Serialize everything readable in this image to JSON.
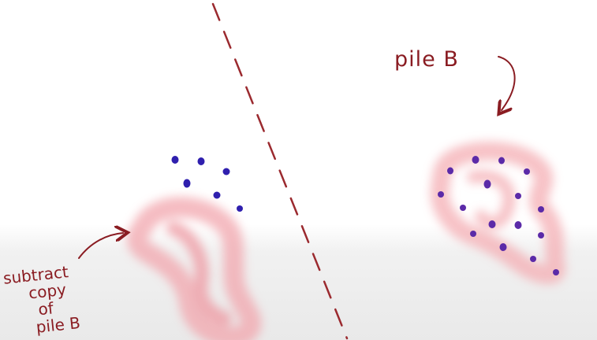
{
  "labels": {
    "pile_b": "pile B",
    "subtract_lines": [
      "subtract",
      "copy",
      "of",
      "pile B"
    ]
  },
  "colors": {
    "ink": "#8a1c22",
    "dot": "#2f1fae",
    "blob": "#f2a6ad"
  }
}
